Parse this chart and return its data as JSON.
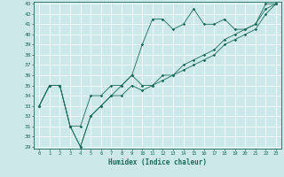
{
  "xlabel": "Humidex (Indice chaleur)",
  "x_values": [
    0,
    1,
    2,
    3,
    4,
    5,
    6,
    7,
    8,
    9,
    10,
    11,
    12,
    13,
    14,
    15,
    16,
    17,
    18,
    19,
    20,
    21,
    22,
    23
  ],
  "line1_y": [
    33,
    35,
    35,
    31,
    31,
    34,
    34,
    35,
    35,
    36,
    39,
    41.5,
    41.5,
    40.5,
    41,
    42.5,
    41,
    41,
    41.5,
    40.5,
    40.5,
    41,
    43,
    43
  ],
  "line2_y": [
    33,
    35,
    35,
    31,
    29,
    32,
    33,
    34,
    35,
    36,
    35,
    35,
    36,
    36,
    37,
    37.5,
    38,
    38.5,
    39.5,
    40,
    40.5,
    41,
    42.5,
    43
  ],
  "line3_y": [
    33,
    35,
    35,
    31,
    29,
    32,
    33,
    34,
    34,
    35,
    34.5,
    35,
    35.5,
    36,
    36.5,
    37,
    37.5,
    38,
    39,
    39.5,
    40,
    40.5,
    42,
    43
  ],
  "line_color": "#1a6b5a",
  "bg_color": "#cce8e8",
  "grid_color": "#ffffff",
  "ylim": [
    29,
    43
  ],
  "xlim": [
    -0.5,
    23.5
  ],
  "yticks": [
    29,
    30,
    31,
    32,
    33,
    34,
    35,
    36,
    37,
    38,
    39,
    40,
    41,
    42,
    43
  ],
  "xticks": [
    0,
    1,
    2,
    3,
    4,
    5,
    6,
    7,
    8,
    9,
    10,
    11,
    12,
    13,
    14,
    15,
    16,
    17,
    18,
    19,
    20,
    21,
    22,
    23
  ]
}
